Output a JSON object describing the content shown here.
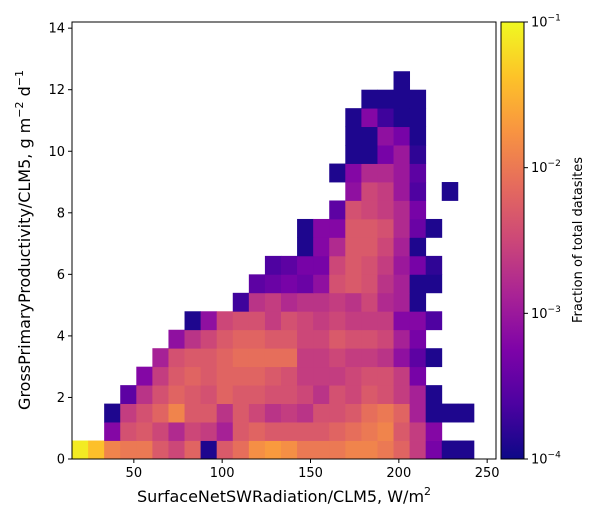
{
  "chart_data": {
    "type": "heatmap",
    "xlabel": "SurfaceNetSWRadiation/CLM5,  W/m",
    "xlabel_sup": "2",
    "ylabel_parts": [
      "GrossPrimaryProductivity/CLM5,  g m",
      "−2",
      " d",
      "−1"
    ],
    "colorbar_label": "Fraction of total datasites",
    "colormap": "plasma",
    "x_ticks": [
      50,
      100,
      150,
      200,
      250
    ],
    "y_ticks": [
      0,
      2,
      4,
      6,
      8,
      10,
      12,
      14
    ],
    "xlim": [
      15,
      255
    ],
    "ylim": [
      0,
      14.2
    ],
    "bin_width_x": 9.1,
    "bin_height_y": 0.6,
    "colorbar": {
      "scale": "log",
      "range": [
        0.0001,
        0.1
      ],
      "ticks": [
        {
          "value": 0.0001,
          "base": "10",
          "exp": "−4"
        },
        {
          "value": 0.001,
          "base": "10",
          "exp": "−3"
        },
        {
          "value": 0.01,
          "base": "10",
          "exp": "−2"
        },
        {
          "value": 0.1,
          "base": "10",
          "exp": "−1"
        }
      ]
    },
    "cells_note": "each cell: [column index from x=15, row index from y=0, log10 fraction]",
    "cells": [
      [
        0,
        0,
        -1.1
      ],
      [
        1,
        0,
        -1.4
      ],
      [
        2,
        0,
        -1.9
      ],
      [
        3,
        0,
        -2.0
      ],
      [
        4,
        0,
        -2.0
      ],
      [
        5,
        0,
        -2.3
      ],
      [
        6,
        0,
        -2.5
      ],
      [
        7,
        0,
        -2.2
      ],
      [
        8,
        0,
        -3.9
      ],
      [
        9,
        0,
        -2.3
      ],
      [
        10,
        0,
        -2.1
      ],
      [
        11,
        0,
        -1.8
      ],
      [
        12,
        0,
        -1.7
      ],
      [
        13,
        0,
        -1.8
      ],
      [
        14,
        0,
        -2.0
      ],
      [
        15,
        0,
        -2.0
      ],
      [
        16,
        0,
        -2.0
      ],
      [
        17,
        0,
        -1.9
      ],
      [
        18,
        0,
        -1.9
      ],
      [
        19,
        0,
        -2.0
      ],
      [
        20,
        0,
        -2.2
      ],
      [
        21,
        0,
        -2.6
      ],
      [
        22,
        0,
        -3.3
      ],
      [
        23,
        0,
        -3.9
      ],
      [
        24,
        0,
        -3.9
      ],
      [
        2,
        1,
        -3.2
      ],
      [
        3,
        1,
        -2.4
      ],
      [
        4,
        1,
        -2.3
      ],
      [
        5,
        1,
        -2.5
      ],
      [
        6,
        1,
        -2.8
      ],
      [
        7,
        1,
        -2.5
      ],
      [
        8,
        1,
        -2.6
      ],
      [
        9,
        1,
        -2.9
      ],
      [
        10,
        1,
        -2.3
      ],
      [
        11,
        1,
        -2.2
      ],
      [
        12,
        1,
        -2.3
      ],
      [
        13,
        1,
        -2.3
      ],
      [
        14,
        1,
        -2.3
      ],
      [
        15,
        1,
        -2.3
      ],
      [
        16,
        1,
        -2.2
      ],
      [
        17,
        1,
        -2.1
      ],
      [
        18,
        1,
        -2.0
      ],
      [
        19,
        1,
        -1.9
      ],
      [
        20,
        1,
        -2.3
      ],
      [
        21,
        1,
        -2.6
      ],
      [
        22,
        1,
        -3.2
      ],
      [
        2,
        2,
        -3.9
      ],
      [
        3,
        2,
        -2.6
      ],
      [
        4,
        2,
        -2.4
      ],
      [
        5,
        2,
        -2.2
      ],
      [
        6,
        2,
        -1.9
      ],
      [
        7,
        2,
        -2.3
      ],
      [
        8,
        2,
        -2.3
      ],
      [
        9,
        2,
        -2.7
      ],
      [
        10,
        2,
        -2.3
      ],
      [
        11,
        2,
        -2.5
      ],
      [
        12,
        2,
        -2.7
      ],
      [
        13,
        2,
        -2.6
      ],
      [
        14,
        2,
        -2.7
      ],
      [
        15,
        2,
        -2.4
      ],
      [
        16,
        2,
        -2.4
      ],
      [
        17,
        2,
        -2.3
      ],
      [
        18,
        2,
        -2.1
      ],
      [
        19,
        2,
        -2.0
      ],
      [
        20,
        2,
        -2.2
      ],
      [
        21,
        2,
        -2.9
      ],
      [
        22,
        2,
        -3.9
      ],
      [
        23,
        2,
        -3.9
      ],
      [
        24,
        2,
        -3.9
      ],
      [
        3,
        3,
        -3.5
      ],
      [
        4,
        3,
        -2.7
      ],
      [
        5,
        3,
        -2.4
      ],
      [
        6,
        3,
        -2.2
      ],
      [
        7,
        3,
        -2.3
      ],
      [
        8,
        3,
        -2.4
      ],
      [
        9,
        3,
        -2.2
      ],
      [
        10,
        3,
        -2.3
      ],
      [
        11,
        3,
        -2.3
      ],
      [
        12,
        3,
        -2.4
      ],
      [
        13,
        3,
        -2.4
      ],
      [
        14,
        3,
        -2.5
      ],
      [
        15,
        3,
        -2.7
      ],
      [
        16,
        3,
        -2.4
      ],
      [
        17,
        3,
        -2.5
      ],
      [
        18,
        3,
        -2.3
      ],
      [
        19,
        3,
        -2.4
      ],
      [
        20,
        3,
        -2.6
      ],
      [
        21,
        3,
        -2.9
      ],
      [
        22,
        3,
        -3.9
      ],
      [
        4,
        4,
        -3.2
      ],
      [
        5,
        4,
        -2.6
      ],
      [
        6,
        4,
        -2.3
      ],
      [
        7,
        4,
        -2.2
      ],
      [
        8,
        4,
        -2.3
      ],
      [
        9,
        4,
        -2.2
      ],
      [
        10,
        4,
        -2.2
      ],
      [
        11,
        4,
        -2.2
      ],
      [
        12,
        4,
        -2.3
      ],
      [
        13,
        4,
        -2.4
      ],
      [
        14,
        4,
        -2.6
      ],
      [
        15,
        4,
        -2.6
      ],
      [
        16,
        4,
        -2.6
      ],
      [
        17,
        4,
        -2.5
      ],
      [
        18,
        4,
        -2.4
      ],
      [
        19,
        4,
        -2.4
      ],
      [
        20,
        4,
        -2.6
      ],
      [
        21,
        4,
        -3.3
      ],
      [
        5,
        5,
        -2.9
      ],
      [
        6,
        5,
        -2.4
      ],
      [
        7,
        5,
        -2.3
      ],
      [
        8,
        5,
        -2.3
      ],
      [
        9,
        5,
        -2.2
      ],
      [
        10,
        5,
        -2.1
      ],
      [
        11,
        5,
        -2.1
      ],
      [
        12,
        5,
        -2.1
      ],
      [
        13,
        5,
        -2.1
      ],
      [
        14,
        5,
        -2.6
      ],
      [
        15,
        5,
        -2.6
      ],
      [
        16,
        5,
        -2.5
      ],
      [
        17,
        5,
        -2.6
      ],
      [
        18,
        5,
        -2.6
      ],
      [
        19,
        5,
        -2.7
      ],
      [
        20,
        5,
        -3.1
      ],
      [
        21,
        5,
        -3.5
      ],
      [
        22,
        5,
        -3.9
      ],
      [
        6,
        6,
        -3.1
      ],
      [
        7,
        6,
        -2.7
      ],
      [
        8,
        6,
        -2.5
      ],
      [
        9,
        6,
        -2.3
      ],
      [
        10,
        6,
        -2.2
      ],
      [
        11,
        6,
        -2.2
      ],
      [
        12,
        6,
        -2.3
      ],
      [
        13,
        6,
        -2.3
      ],
      [
        14,
        6,
        -2.5
      ],
      [
        15,
        6,
        -2.5
      ],
      [
        16,
        6,
        -2.3
      ],
      [
        17,
        6,
        -2.4
      ],
      [
        18,
        6,
        -2.4
      ],
      [
        19,
        6,
        -2.5
      ],
      [
        20,
        6,
        -2.9
      ],
      [
        21,
        6,
        -3.3
      ],
      [
        7,
        7,
        -3.9
      ],
      [
        8,
        7,
        -3.1
      ],
      [
        9,
        7,
        -2.5
      ],
      [
        10,
        7,
        -2.4
      ],
      [
        11,
        7,
        -2.4
      ],
      [
        12,
        7,
        -2.6
      ],
      [
        13,
        7,
        -2.4
      ],
      [
        14,
        7,
        -2.5
      ],
      [
        15,
        7,
        -2.6
      ],
      [
        16,
        7,
        -2.5
      ],
      [
        17,
        7,
        -2.6
      ],
      [
        18,
        7,
        -2.6
      ],
      [
        19,
        7,
        -2.6
      ],
      [
        20,
        7,
        -3.2
      ],
      [
        21,
        7,
        -3.2
      ],
      [
        22,
        7,
        -3.6
      ],
      [
        10,
        8,
        -3.7
      ],
      [
        11,
        8,
        -2.7
      ],
      [
        12,
        8,
        -2.6
      ],
      [
        13,
        8,
        -2.8
      ],
      [
        14,
        8,
        -2.7
      ],
      [
        15,
        8,
        -2.7
      ],
      [
        16,
        8,
        -2.6
      ],
      [
        17,
        8,
        -2.7
      ],
      [
        18,
        8,
        -2.5
      ],
      [
        19,
        8,
        -2.8
      ],
      [
        20,
        8,
        -2.9
      ],
      [
        21,
        8,
        -3.9
      ],
      [
        11,
        9,
        -3.5
      ],
      [
        12,
        9,
        -3.4
      ],
      [
        13,
        9,
        -3.3
      ],
      [
        14,
        9,
        -3.4
      ],
      [
        15,
        9,
        -3.1
      ],
      [
        16,
        9,
        -2.4
      ],
      [
        17,
        9,
        -2.3
      ],
      [
        18,
        9,
        -2.4
      ],
      [
        19,
        9,
        -2.7
      ],
      [
        20,
        9,
        -2.9
      ],
      [
        21,
        9,
        -3.9
      ],
      [
        22,
        9,
        -3.9
      ],
      [
        12,
        10,
        -3.6
      ],
      [
        13,
        10,
        -3.5
      ],
      [
        14,
        10,
        -3.3
      ],
      [
        15,
        10,
        -3.3
      ],
      [
        16,
        10,
        -2.5
      ],
      [
        17,
        10,
        -2.3
      ],
      [
        18,
        10,
        -2.4
      ],
      [
        19,
        10,
        -2.6
      ],
      [
        20,
        10,
        -3.0
      ],
      [
        21,
        10,
        -3.3
      ],
      [
        22,
        10,
        -3.8
      ],
      [
        14,
        11,
        -3.9
      ],
      [
        15,
        11,
        -3.2
      ],
      [
        16,
        11,
        -2.8
      ],
      [
        17,
        11,
        -2.3
      ],
      [
        18,
        11,
        -2.3
      ],
      [
        19,
        11,
        -2.5
      ],
      [
        20,
        11,
        -2.9
      ],
      [
        21,
        11,
        -3.9
      ],
      [
        14,
        12,
        -3.9
      ],
      [
        15,
        12,
        -3.2
      ],
      [
        16,
        12,
        -3.2
      ],
      [
        17,
        12,
        -2.3
      ],
      [
        18,
        12,
        -2.3
      ],
      [
        19,
        12,
        -2.4
      ],
      [
        20,
        12,
        -2.8
      ],
      [
        21,
        12,
        -3.4
      ],
      [
        22,
        12,
        -3.9
      ],
      [
        16,
        13,
        -3.5
      ],
      [
        17,
        13,
        -2.4
      ],
      [
        18,
        13,
        -2.5
      ],
      [
        19,
        13,
        -2.6
      ],
      [
        20,
        13,
        -2.8
      ],
      [
        21,
        13,
        -3.3
      ],
      [
        17,
        14,
        -3.1
      ],
      [
        18,
        14,
        -2.5
      ],
      [
        19,
        14,
        -2.6
      ],
      [
        20,
        14,
        -3.0
      ],
      [
        21,
        14,
        -3.6
      ],
      [
        23,
        14,
        -3.9
      ],
      [
        16,
        15,
        -3.9
      ],
      [
        17,
        15,
        -3.2
      ],
      [
        18,
        15,
        -2.8
      ],
      [
        19,
        15,
        -2.8
      ],
      [
        20,
        15,
        -3.0
      ],
      [
        21,
        15,
        -3.5
      ],
      [
        17,
        16,
        -3.9
      ],
      [
        18,
        16,
        -3.9
      ],
      [
        19,
        16,
        -3.3
      ],
      [
        20,
        16,
        -3.0
      ],
      [
        21,
        16,
        -3.8
      ],
      [
        17,
        17,
        -3.9
      ],
      [
        18,
        17,
        -3.9
      ],
      [
        19,
        17,
        -3.1
      ],
      [
        20,
        17,
        -3.3
      ],
      [
        21,
        17,
        -3.9
      ],
      [
        17,
        18,
        -3.9
      ],
      [
        18,
        18,
        -3.2
      ],
      [
        19,
        18,
        -3.7
      ],
      [
        20,
        18,
        -3.9
      ],
      [
        21,
        18,
        -3.9
      ],
      [
        18,
        19,
        -3.9
      ],
      [
        19,
        19,
        -3.9
      ],
      [
        20,
        19,
        -3.9
      ],
      [
        21,
        19,
        -3.9
      ],
      [
        20,
        20,
        -3.9
      ]
    ]
  }
}
